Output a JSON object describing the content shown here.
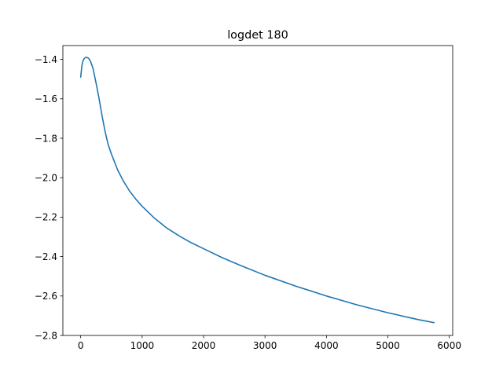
{
  "chart_data": {
    "type": "line",
    "title": "logdet 180",
    "xlabel": "",
    "ylabel": "",
    "xlim": [
      -290,
      6055
    ],
    "ylim": [
      -2.8,
      -1.33
    ],
    "xticks": [
      0,
      1000,
      2000,
      3000,
      4000,
      5000,
      6000
    ],
    "xtick_labels": [
      "0",
      "1000",
      "2000",
      "3000",
      "4000",
      "5000",
      "6000"
    ],
    "yticks": [
      -2.8,
      -2.6,
      -2.4,
      -2.2,
      -2.0,
      -1.8,
      -1.6,
      -1.4
    ],
    "ytick_labels": [
      "−2.8",
      "−2.6",
      "−2.4",
      "−2.2",
      "−2.0",
      "−1.8",
      "−1.6",
      "−1.4"
    ],
    "grid": false,
    "series": [
      {
        "color": "#1f77b4",
        "x": [
          0,
          20,
          40,
          60,
          80,
          100,
          130,
          160,
          200,
          250,
          300,
          350,
          400,
          450,
          500,
          600,
          700,
          800,
          900,
          1000,
          1200,
          1400,
          1600,
          1800,
          2000,
          2300,
          2600,
          3000,
          3500,
          4000,
          4500,
          5000,
          5500,
          5750
        ],
        "y": [
          -1.49,
          -1.43,
          -1.405,
          -1.395,
          -1.39,
          -1.39,
          -1.395,
          -1.41,
          -1.445,
          -1.52,
          -1.6,
          -1.69,
          -1.77,
          -1.835,
          -1.88,
          -1.96,
          -2.02,
          -2.07,
          -2.11,
          -2.145,
          -2.205,
          -2.255,
          -2.295,
          -2.33,
          -2.36,
          -2.405,
          -2.445,
          -2.495,
          -2.55,
          -2.6,
          -2.645,
          -2.685,
          -2.72,
          -2.735
        ]
      }
    ]
  }
}
